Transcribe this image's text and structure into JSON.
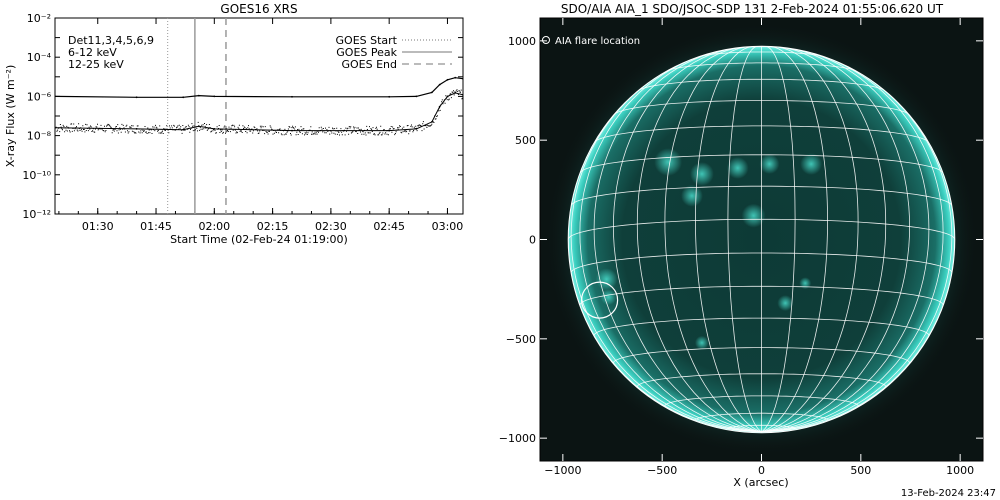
{
  "chart_data": [
    {
      "type": "line",
      "title": "GOES16 XRS",
      "xlabel": "Start Time (02-Feb-24 01:19:00)",
      "ylabel": "X-ray Flux (W m⁻²)",
      "y_scale": "log",
      "ylim": [
        1e-12,
        0.01
      ],
      "xlim": [
        "01:19",
        "03:04"
      ],
      "x_ticks": [
        "01:30",
        "01:45",
        "02:00",
        "02:15",
        "02:30",
        "02:45",
        "03:00"
      ],
      "y_ticks": [
        "10⁻²",
        "10⁻⁴",
        "10⁻⁶",
        "10⁻⁸",
        "10⁻¹⁰",
        "10⁻¹²"
      ],
      "annotation_detectors": "Det11,3,4,5,6,9",
      "series": [
        {
          "name": "6-12 keV",
          "color": "#000000",
          "x": [
            "01:19",
            "01:40",
            "01:52",
            "01:56",
            "02:00",
            "02:20",
            "02:45",
            "02:52",
            "02:56",
            "02:58",
            "03:00",
            "03:02",
            "03:04"
          ],
          "y": [
            1e-06,
            9e-07,
            9e-07,
            1.1e-06,
            1e-06,
            9.5e-07,
            9.5e-07,
            1e-06,
            1.6e-06,
            4e-06,
            7e-06,
            9e-06,
            8e-06
          ]
        },
        {
          "name": "12-25 keV",
          "color": "#000000",
          "x": [
            "01:19",
            "01:40",
            "01:52",
            "01:56",
            "02:00",
            "02:20",
            "02:45",
            "02:52",
            "02:56",
            "02:58",
            "03:00",
            "03:02",
            "03:04"
          ],
          "y": [
            2.5e-08,
            2.2e-08,
            2e-08,
            3e-08,
            2.2e-08,
            1.8e-08,
            1.8e-08,
            2.2e-08,
            5e-08,
            3e-07,
            1e-06,
            1.5e-06,
            1.2e-06
          ]
        }
      ],
      "legend": {
        "placement": "top-right",
        "items": [
          {
            "label": "GOES Start",
            "style": "dotted"
          },
          {
            "label": "GOES Peak",
            "style": "solid"
          },
          {
            "label": "GOES End",
            "style": "dashed"
          }
        ]
      },
      "event_lines": {
        "start": "01:48",
        "peak": "01:55",
        "end": "02:03"
      },
      "label_colors": {
        "det": "#000000",
        "low": "#e000e0",
        "high": "#00cc00"
      }
    },
    {
      "type": "heatmap",
      "title": "SDO/AIA AIA_1 SDO/JSOC-SDP 131  2-Feb-2024 01:55:06.620 UT",
      "xlabel": "X (arcsec)",
      "ylabel": "",
      "xlim": [
        -1115,
        1115
      ],
      "ylim": [
        -1115,
        1115
      ],
      "x_ticks": [
        -1000,
        -500,
        0,
        500,
        1000
      ],
      "y_ticks": [
        -1000,
        -500,
        0,
        500,
        1000
      ],
      "solar_radius_arcsec": 973,
      "legend": {
        "label": "AIA flare location",
        "placement": "top-left"
      },
      "flare_location": {
        "x": -815,
        "y": -305
      },
      "colors": {
        "background": "#0b1413",
        "disk": "#0e3c37",
        "limb": "#38d0c0",
        "grid": "#ffffff"
      }
    }
  ],
  "footer": {
    "timestamp": "13-Feb-2024 23:47"
  }
}
